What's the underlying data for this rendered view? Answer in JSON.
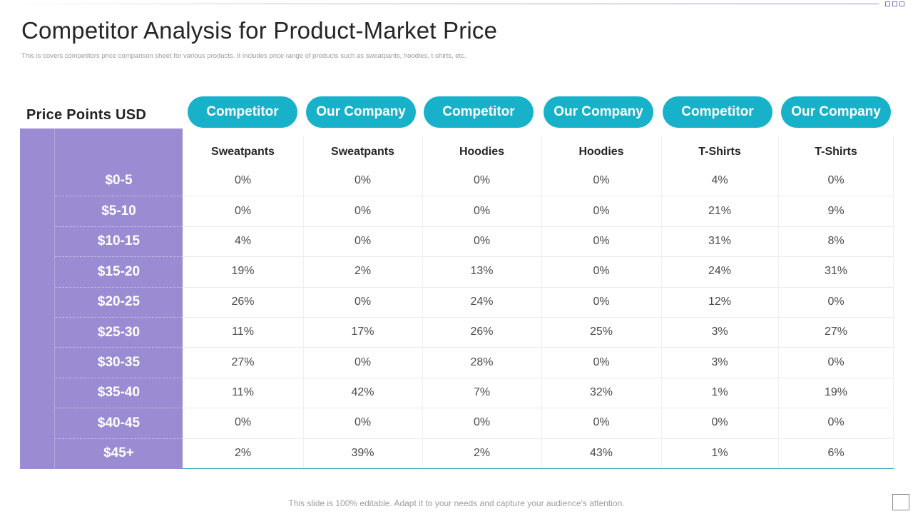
{
  "title": "Competitor Analysis for Product-Market Price",
  "subtitle": "This is covers competitors price comparison sheet for various products. It includes price range of products such as sweatpants, hoodies, t-shirts, etc.",
  "price_points_heading": "Price Points USD",
  "columns": [
    {
      "group": "Competitor",
      "product": "Sweatpants"
    },
    {
      "group": "Our Company",
      "product": "Sweatpants"
    },
    {
      "group": "Competitor",
      "product": "Hoodies"
    },
    {
      "group": "Our Company",
      "product": "Hoodies"
    },
    {
      "group": "Competitor",
      "product": "T-Shirts"
    },
    {
      "group": "Our Company",
      "product": "T-Shirts"
    }
  ],
  "rows": [
    {
      "price": "$0-5",
      "values": [
        "0%",
        "0%",
        "0%",
        "0%",
        "4%",
        "0%"
      ]
    },
    {
      "price": "$5-10",
      "values": [
        "0%",
        "0%",
        "0%",
        "0%",
        "21%",
        "9%"
      ]
    },
    {
      "price": "$10-15",
      "values": [
        "4%",
        "0%",
        "0%",
        "0%",
        "31%",
        "8%"
      ]
    },
    {
      "price": "$15-20",
      "values": [
        "19%",
        "2%",
        "13%",
        "0%",
        "24%",
        "31%"
      ]
    },
    {
      "price": "$20-25",
      "values": [
        "26%",
        "0%",
        "24%",
        "0%",
        "12%",
        "0%"
      ]
    },
    {
      "price": "$25-30",
      "values": [
        "11%",
        "17%",
        "26%",
        "25%",
        "3%",
        "27%"
      ]
    },
    {
      "price": "$30-35",
      "values": [
        "27%",
        "0%",
        "28%",
        "0%",
        "3%",
        "0%"
      ]
    },
    {
      "price": "$35-40",
      "values": [
        "11%",
        "42%",
        "7%",
        "32%",
        "1%",
        "19%"
      ]
    },
    {
      "price": "$40-45",
      "values": [
        "0%",
        "0%",
        "0%",
        "0%",
        "0%",
        "0%"
      ]
    },
    {
      "price": "$45+",
      "values": [
        "2%",
        "39%",
        "2%",
        "43%",
        "1%",
        "6%"
      ]
    }
  ],
  "footer": "This slide is 100% editable. Adapt it to your needs and capture your audience's attention.",
  "colors": {
    "accent_teal": "#17b1c9",
    "price_column_purple": "#9b8bd2",
    "title_text": "#262626"
  }
}
